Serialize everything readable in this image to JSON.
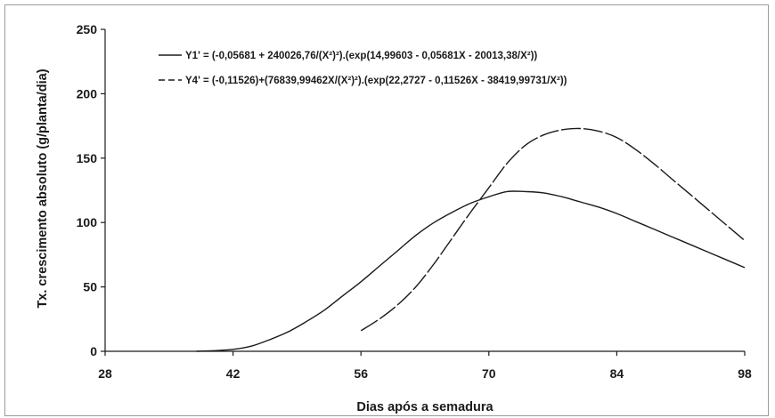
{
  "chart_data": {
    "type": "line",
    "xlabel": "Dias após a semadura",
    "ylabel": "Tx. crescimento absoluto (g/planta/dia)",
    "xlim": [
      28,
      98
    ],
    "ylim": [
      0,
      250
    ],
    "x_ticks": [
      "28",
      "42",
      "56",
      "70",
      "84",
      "98"
    ],
    "y_ticks": [
      "0",
      "50",
      "100",
      "150",
      "200",
      "250"
    ],
    "grid": false,
    "legend_position": "top-left",
    "series": [
      {
        "name": "Y1' = (-0,05681 + 240026,76/(X²)²).(exp(14,99603 - 0,05681X - 20013,38/X²))",
        "style": "solid",
        "color": "#1a1a1a",
        "x": [
          38,
          40,
          42,
          44,
          46,
          48,
          50,
          52,
          54,
          56,
          58,
          60,
          62,
          64,
          66,
          68,
          70,
          72,
          74,
          76,
          78,
          80,
          82,
          84,
          86,
          88,
          90,
          92,
          94,
          96,
          98
        ],
        "y": [
          0,
          0.5,
          1.5,
          4,
          9,
          15,
          23,
          32,
          43,
          54,
          66,
          78,
          90,
          100,
          108,
          115,
          120,
          124,
          124,
          123,
          120,
          116,
          112,
          107,
          101,
          95,
          89,
          83,
          77,
          71,
          65
        ]
      },
      {
        "name": "Y4' = (-0,11526)+(76839,99462X/(X²)²).(exp(22,2727 - 0,11526X - 38419,99731/X²))",
        "style": "dashed",
        "color": "#1a1a1a",
        "x": [
          56,
          58,
          60,
          62,
          64,
          66,
          68,
          70,
          72,
          74,
          76,
          78,
          80,
          82,
          84,
          86,
          88,
          90,
          92,
          94,
          96,
          98
        ],
        "y": [
          16,
          25,
          36,
          50,
          68,
          88,
          108,
          127,
          146,
          160,
          168,
          172,
          173,
          171,
          166,
          157,
          146,
          134,
          122,
          110,
          98,
          86
        ]
      }
    ]
  }
}
